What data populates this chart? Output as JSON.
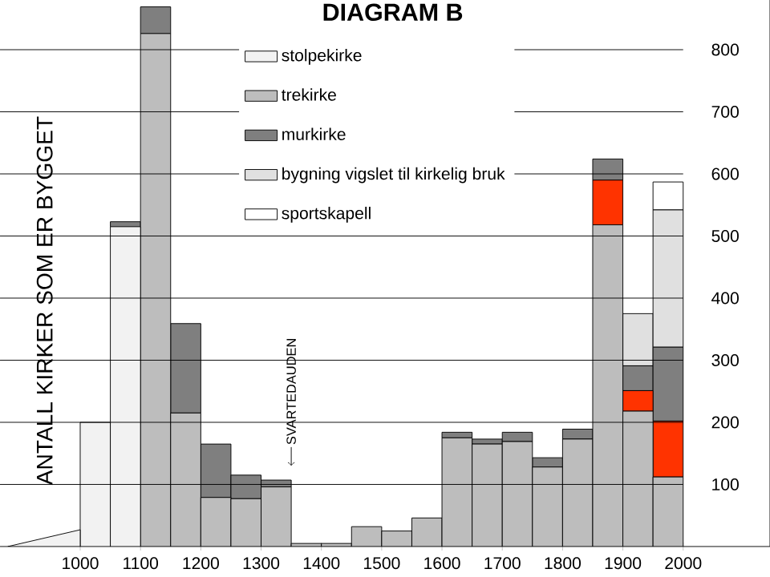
{
  "chart_data": {
    "type": "bar",
    "title": "DIAGRAM B",
    "ylabel": "ANTALL KIRKER SOM ER BYGGET",
    "x": [
      1025,
      1075,
      1125,
      1175,
      1225,
      1275,
      1325,
      1375,
      1425,
      1475,
      1525,
      1575,
      1625,
      1675,
      1725,
      1775,
      1825,
      1875,
      1925,
      1975
    ],
    "stacked": true,
    "series": [
      {
        "name": "stolpekirke",
        "color": "#f2f2f2",
        "values": [
          200,
          515,
          null,
          null,
          null,
          null,
          null,
          null,
          null,
          null,
          null,
          null,
          null,
          null,
          null,
          null,
          null,
          null,
          null,
          null
        ]
      },
      {
        "name": "trekirke",
        "color": "#bdbdbd",
        "values": [
          null,
          null,
          826,
          215,
          79,
          77,
          96,
          5,
          5,
          32,
          25,
          46,
          175,
          165,
          169,
          128,
          173,
          518,
          218,
          112
        ]
      },
      {
        "color": "#ff3300",
        "values": [
          null,
          null,
          null,
          null,
          null,
          null,
          null,
          null,
          null,
          null,
          null,
          null,
          null,
          null,
          null,
          null,
          null,
          72,
          33,
          90
        ]
      },
      {
        "name": "murkirke",
        "color": "#7f7f7f",
        "values": [
          null,
          8,
          43,
          144,
          86,
          38,
          11,
          null,
          null,
          null,
          null,
          null,
          9,
          8,
          15,
          15,
          16,
          34,
          40,
          119
        ]
      },
      {
        "name": "bygning vigslet til kirkelig bruk",
        "color": "#e0e0e0",
        "values": [
          null,
          null,
          null,
          null,
          null,
          null,
          null,
          null,
          null,
          null,
          null,
          null,
          null,
          null,
          null,
          null,
          null,
          null,
          84,
          221
        ]
      },
      {
        "name": "sportskapell",
        "color": "#ffffff",
        "values": [
          null,
          null,
          null,
          null,
          null,
          null,
          null,
          null,
          null,
          null,
          null,
          null,
          null,
          null,
          null,
          null,
          null,
          null,
          null,
          45
        ]
      },
      {
        "type": "area",
        "color": "#f2f2f2",
        "x": [
          880,
          1000
        ],
        "values": [
          0,
          27
        ]
      }
    ],
    "xlim": [
      867,
      2144
    ],
    "xticks": [
      1000,
      1100,
      1200,
      1300,
      1400,
      1500,
      1600,
      1700,
      1800,
      1900,
      2000
    ],
    "ylim": [
      0,
      880
    ],
    "yticks": [
      100,
      200,
      300,
      400,
      500,
      600,
      700,
      800
    ],
    "grid": "y",
    "legend": "top",
    "annotations": [
      {
        "text": "SVARTEDAUDEN",
        "x": 1350,
        "y": 130
      }
    ]
  }
}
